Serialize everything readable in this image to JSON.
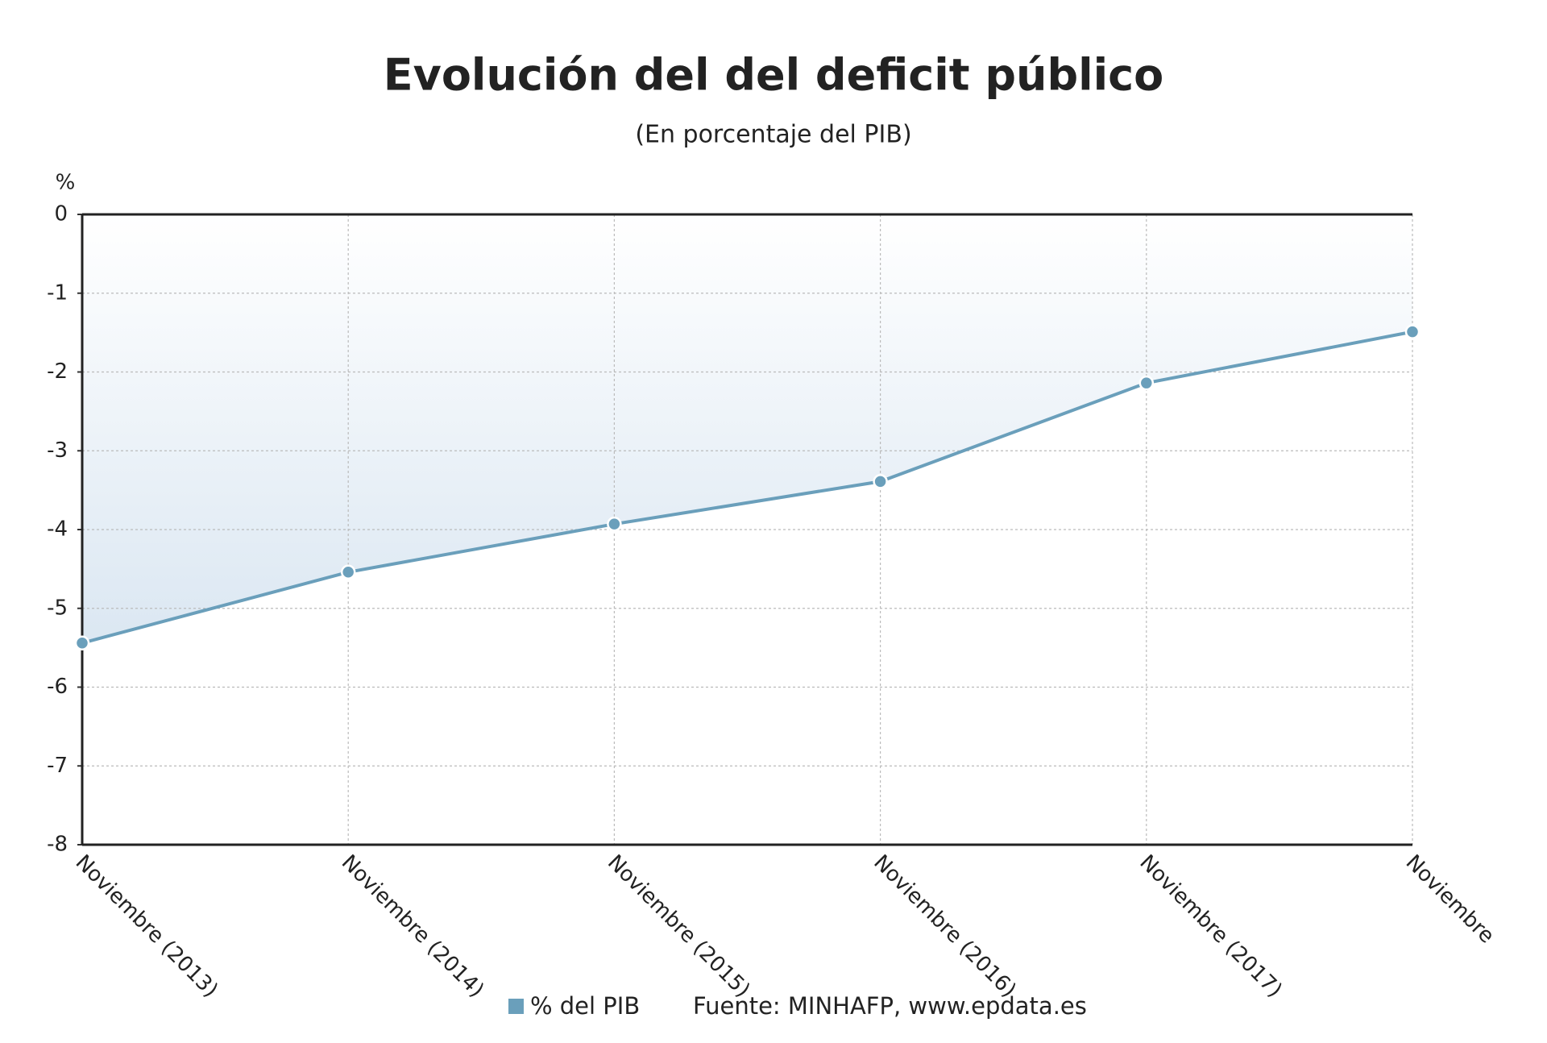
{
  "chart_data": {
    "type": "line",
    "title": "Evolución del del deficit público",
    "subtitle": "(En porcentaje del PIB)",
    "y_label": "%",
    "categories": [
      "Noviembre (2013)",
      "Noviembre (2014)",
      "Noviembre (2015)",
      "Noviembre (2016)",
      "Noviembre (2017)",
      "Noviembre"
    ],
    "series": [
      {
        "name": "% del PIB",
        "color": "#6a9fbb",
        "values": [
          -5.44,
          -4.54,
          -3.93,
          -3.39,
          -2.14,
          -1.49
        ]
      }
    ],
    "ylim": [
      -8,
      0
    ],
    "yticks": [
      0,
      -1,
      -2,
      -3,
      -4,
      -5,
      -6,
      -7,
      -8
    ],
    "grid": true,
    "source": "Fuente: MINHAFP, www.epdata.es"
  }
}
